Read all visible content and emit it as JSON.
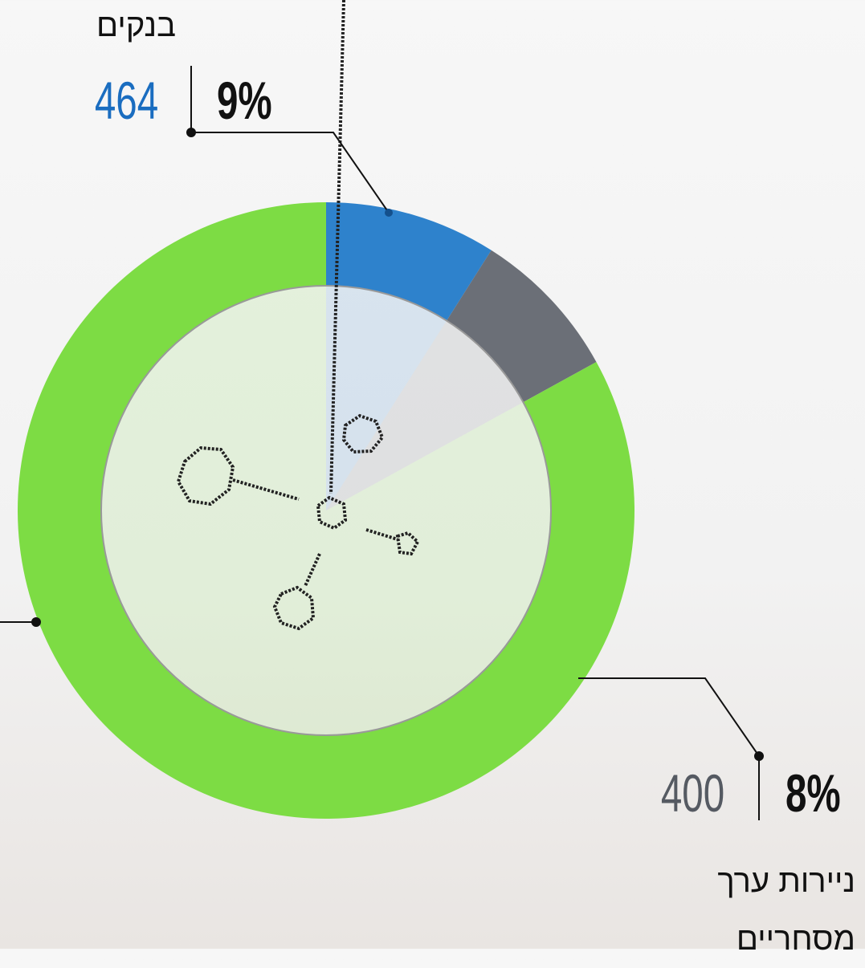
{
  "chart_data": {
    "type": "donut",
    "categories": [
      "בנקים",
      "ניירות ערך מסחריים",
      null
    ],
    "values": [
      9,
      8,
      83
    ],
    "value_labels": [
      "9%",
      "8%",
      null
    ],
    "amounts": [
      464,
      400,
      null
    ],
    "colors": [
      "#2e82cc",
      "#6b6f77",
      "#7ddc44"
    ]
  }
}
